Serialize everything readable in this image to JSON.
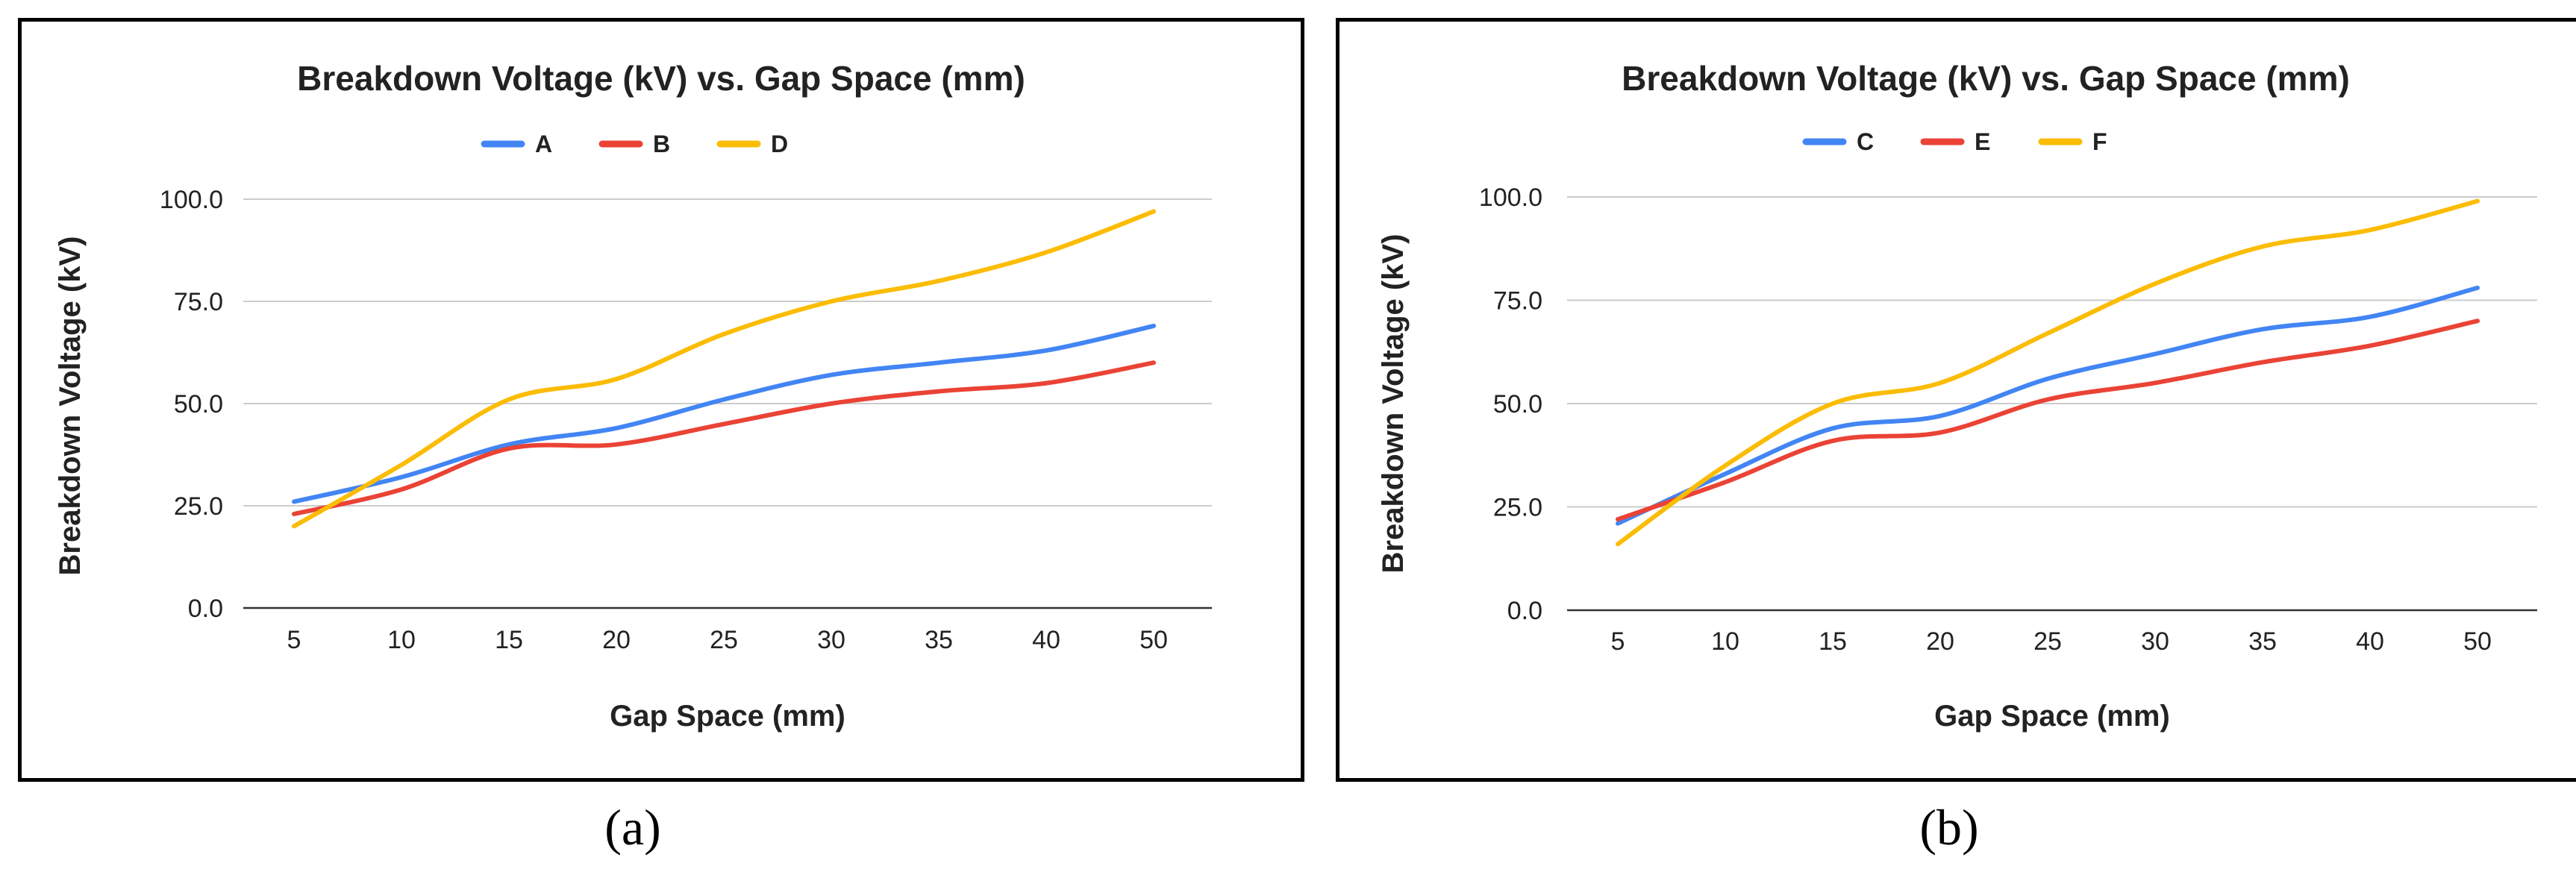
{
  "chart_data": [
    {
      "type": "line",
      "panel_label": "(a)",
      "title": "Breakdown Voltage (kV) vs. Gap Space (mm)",
      "xlabel": "Gap Space (mm)",
      "ylabel": "Breakdown Voltage (kV)",
      "categories": [
        "5",
        "10",
        "15",
        "20",
        "25",
        "30",
        "35",
        "40",
        "50"
      ],
      "ylim": [
        0,
        100
      ],
      "yticks": [
        "0.0",
        "25.0",
        "50.0",
        "75.0",
        "100.0"
      ],
      "grid": true,
      "legend": "top-center",
      "series": [
        {
          "name": "A",
          "color": "#4285F4",
          "values": [
            26,
            32,
            40,
            44,
            51,
            57,
            60,
            63,
            69
          ]
        },
        {
          "name": "B",
          "color": "#EA4335",
          "values": [
            23,
            29,
            39,
            40,
            45,
            50,
            53,
            55,
            60
          ]
        },
        {
          "name": "D",
          "color": "#FBBC04",
          "values": [
            20,
            35,
            51,
            56,
            67,
            75,
            80,
            87,
            97
          ]
        }
      ]
    },
    {
      "type": "line",
      "panel_label": "(b)",
      "title": "Breakdown Voltage (kV) vs. Gap Space (mm)",
      "xlabel": "Gap Space (mm)",
      "ylabel": "Breakdown Voltage (kV)",
      "categories": [
        "5",
        "10",
        "15",
        "20",
        "25",
        "30",
        "35",
        "40",
        "50"
      ],
      "ylim": [
        0,
        100
      ],
      "yticks": [
        "0.0",
        "25.0",
        "50.0",
        "75.0",
        "100.0"
      ],
      "grid": true,
      "legend": "top-center",
      "series": [
        {
          "name": "C",
          "color": "#4285F4",
          "values": [
            21,
            33,
            44,
            47,
            56,
            62,
            68,
            71,
            78
          ]
        },
        {
          "name": "E",
          "color": "#EA4335",
          "values": [
            22,
            31,
            41,
            43,
            51,
            55,
            60,
            64,
            70
          ]
        },
        {
          "name": "F",
          "color": "#FBBC04",
          "values": [
            16,
            35,
            50,
            55,
            67,
            79,
            88,
            92,
            99
          ]
        }
      ]
    }
  ]
}
